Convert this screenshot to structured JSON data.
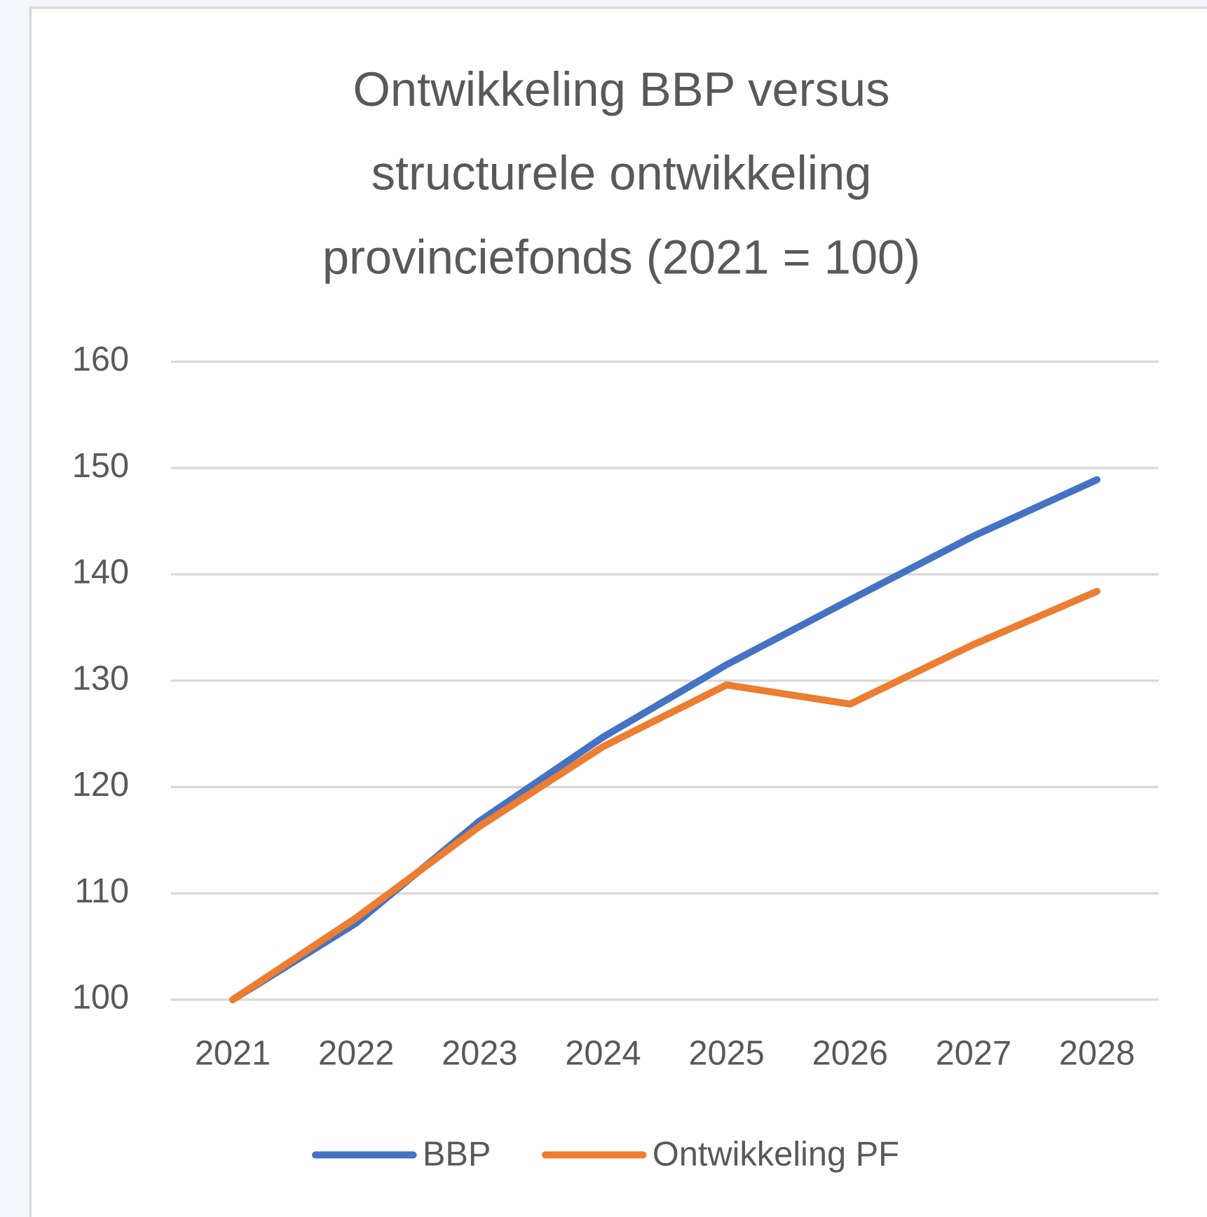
{
  "chart_data": {
    "type": "line",
    "title": [
      "Ontwikkeling BBP versus",
      "structurele ontwikkeling",
      "provinciefonds (2021 = 100)"
    ],
    "categories": [
      "2021",
      "2022",
      "2023",
      "2024",
      "2025",
      "2026",
      "2027",
      "2028"
    ],
    "series": [
      {
        "name": "BBP",
        "color": "#4472c4",
        "values": [
          100,
          107.2,
          116.8,
          124.7,
          131.5,
          137.6,
          143.6,
          148.9
        ]
      },
      {
        "name": "Ontwikkeling PF",
        "color": "#ed7d31",
        "values": [
          100,
          107.7,
          116.3,
          123.8,
          129.6,
          127.8,
          133.4,
          138.4
        ]
      }
    ],
    "ylim": [
      100,
      160
    ],
    "yticks": [
      100,
      110,
      120,
      130,
      140,
      150,
      160
    ],
    "grid": true,
    "legend": "bottom"
  }
}
